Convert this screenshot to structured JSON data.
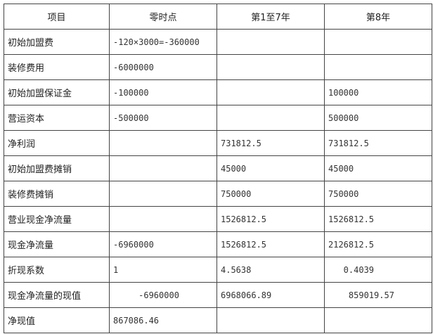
{
  "table": {
    "headers": [
      "项目",
      "零时点",
      "第1至7年",
      "第8年"
    ],
    "rows": [
      [
        "初始加盟费",
        "-120×3000=-360000",
        "",
        ""
      ],
      [
        "装修费用",
        "-6000000",
        "",
        ""
      ],
      [
        "初始加盟保证金",
        "-100000",
        "",
        "100000"
      ],
      [
        "营运资本",
        "-500000",
        "",
        "500000"
      ],
      [
        "净利润",
        "",
        "731812.5",
        "731812.5"
      ],
      [
        "初始加盟费摊销",
        "",
        "45000",
        "45000"
      ],
      [
        "装修费摊销",
        "",
        "750000",
        "750000"
      ],
      [
        "营业现金净流量",
        "",
        "1526812.5",
        "1526812.5"
      ],
      [
        "现金净流量",
        "-6960000",
        "1526812.5",
        "2126812.5"
      ],
      [
        "折现系数",
        "1",
        "4.5638",
        "   0.4039"
      ],
      [
        "现金净流量的现值",
        "     -6960000",
        "6968066.89",
        "    859019.57"
      ],
      [
        "净现值",
        "867086.46",
        "",
        ""
      ]
    ]
  }
}
